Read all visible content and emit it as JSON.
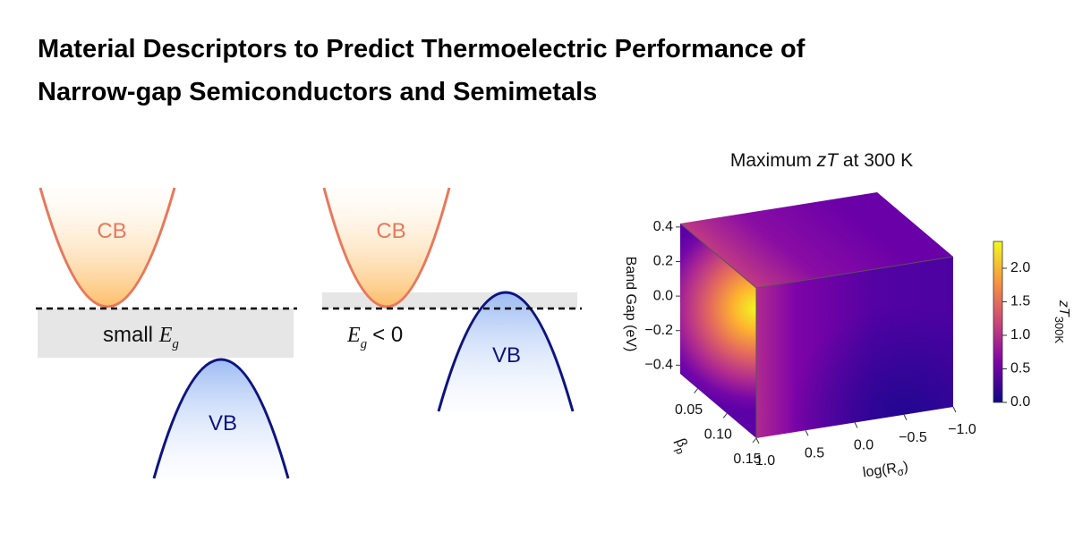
{
  "title_lines": [
    "Material Descriptors to Predict Thermoelectric Performance of",
    "Narrow-gap Semiconductors and Semimetals"
  ],
  "diagram": {
    "semiconductor": {
      "cb_label": "CB",
      "vb_label": "VB",
      "gap_prefix": "small",
      "gap_symbol": "E",
      "gap_subscript": "g"
    },
    "semimetal": {
      "cb_label": "CB",
      "vb_label": "VB",
      "gap_symbol": "E",
      "gap_subscript": "g",
      "gap_suffix": "< 0"
    }
  },
  "plot": {
    "title_prefix": "Maximum",
    "title_symbol": "zT",
    "title_suffix": "at 300 K",
    "z_label": "Band Gap (eV)",
    "beta_label_symbol": "β",
    "beta_label_subscript": "p",
    "log_label_prefix": "log(R",
    "log_label_subscript": "σ",
    "log_label_suffix": ")",
    "zlim": [
      -0.45,
      0.42
    ],
    "zticks": [
      0.4,
      0.2,
      {
        "value": 0,
        "label": "0.0"
      },
      {
        "value": -0.2,
        "label": "−0.2"
      },
      {
        "value": -0.4,
        "label": "−0.4"
      }
    ],
    "betalim": [
      0.15,
      0.02
    ],
    "betaticks": [
      0.05,
      {
        "value": 0.1,
        "label": "0.10"
      },
      0.15
    ],
    "loglim": [
      1,
      -1
    ],
    "logticks": [
      {
        "value": 1,
        "label": "1.0"
      },
      0.5,
      {
        "value": 0,
        "label": "0.0"
      },
      {
        "value": -0.5,
        "label": "−0.5"
      },
      {
        "value": -1,
        "label": "−1.0"
      }
    ],
    "colorbar": {
      "label_symbol": "zT",
      "label_subscript": "300K",
      "clim": [
        0,
        2.4
      ],
      "ticks": [
        {
          "value": 0,
          "label": "0.0"
        },
        0.5,
        {
          "value": 1,
          "label": "1.0"
        },
        {
          "value": 1.5,
          "label": "1.5"
        },
        {
          "value": 2,
          "label": "2.0"
        }
      ]
    }
  }
}
